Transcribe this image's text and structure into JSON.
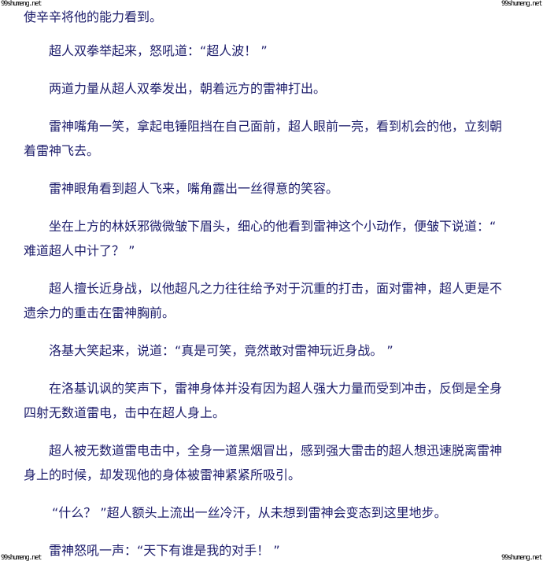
{
  "watermark": "99shumeng.net",
  "paragraphs": [
    {
      "indent": false,
      "lines": [
        "使辛辛将他的能力看到。"
      ]
    },
    {
      "indent": true,
      "lines": [
        "超人双拳举起来，怒吼道：“超人波！ ”"
      ]
    },
    {
      "indent": true,
      "lines": [
        "两道力量从超人双拳发出，朝着远方的雷神打出。"
      ]
    },
    {
      "indent": true,
      "lines": [
        "雷神嘴角一笑，拿起电锤阻挡在自己面前，超人眼前一亮，看到机会的他，立刻朝",
        "着雷神飞去。"
      ]
    },
    {
      "indent": true,
      "lines": [
        "雷神眼角看到超人飞来，嘴角露出一丝得意的笑容。"
      ]
    },
    {
      "indent": true,
      "lines": [
        "坐在上方的林妖邪微微皱下眉头，细心的他看到雷神这个小动作，便皱下说道：“",
        "难道超人中计了？ ”"
      ]
    },
    {
      "indent": true,
      "lines": [
        "超人擅长近身战，以他超凡之力往往给予对于沉重的打击，面对雷神，超人更是不",
        "遗余力的重击在雷神胸前。"
      ]
    },
    {
      "indent": true,
      "lines": [
        "洛基大笑起来，说道：“真是可笑，竟然敢对雷神玩近身战。 ”"
      ]
    },
    {
      "indent": true,
      "lines": [
        "在洛基讥讽的笑声下，雷神身体并没有因为超人强大力量而受到冲击，反倒是全身",
        "四射无数道雷电，击中在超人身上。"
      ]
    },
    {
      "indent": true,
      "lines": [
        "超人被无数道雷电击中，全身一道黑烟冒出，感到强大雷击的超人想迅速脱离雷神",
        "身上的时候，却发现他的身体被雷神紧紧所吸引。"
      ]
    },
    {
      "indent": true,
      "quote": true,
      "lines": [
        "“什么？ ”超人额头上流出一丝冷汗，从未想到雷神会变态到这里地步。"
      ]
    },
    {
      "indent": true,
      "lines": [
        "雷神怒吼一声：“天下有谁是我的对手！ ”"
      ]
    }
  ]
}
